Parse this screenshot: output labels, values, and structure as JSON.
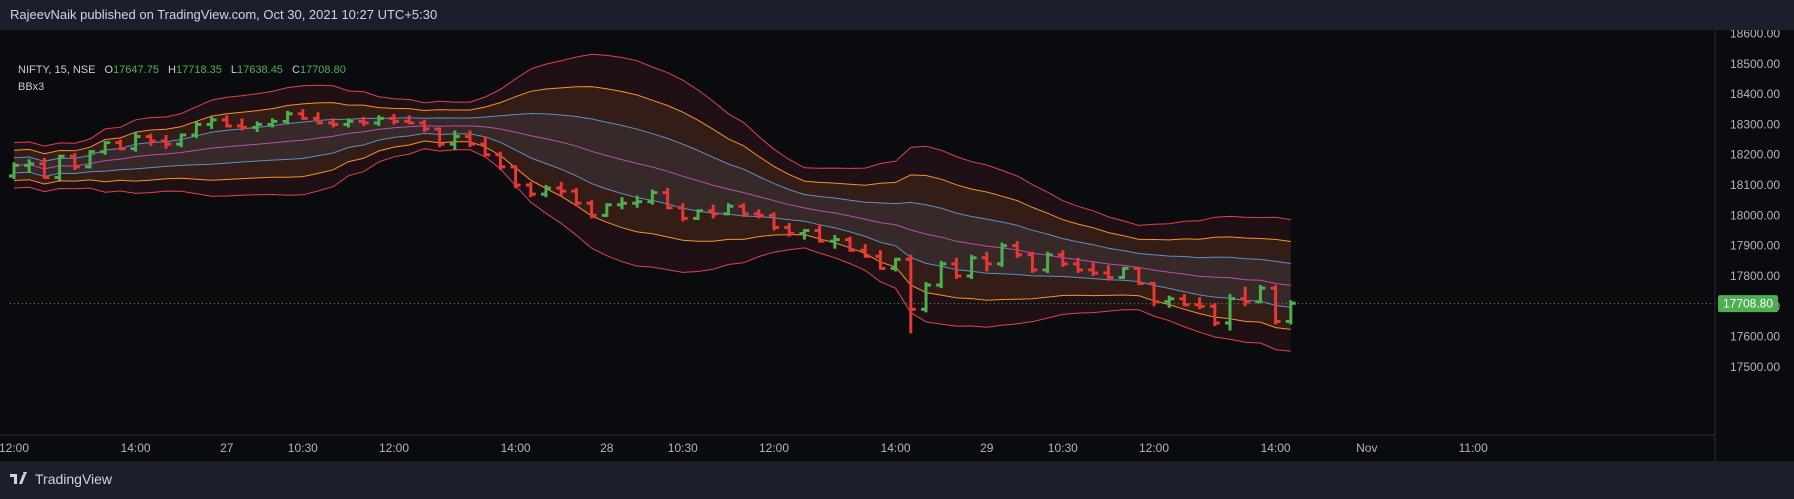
{
  "header": {
    "publisher": "RajeevNaik published on TradingView.com, Oct 30, 2021 10:27 UTC+5:30"
  },
  "legend": {
    "symbol": "NIFTY, 15, NSE",
    "open_label": "O",
    "open": "17647.75",
    "high_label": "H",
    "high": "17718.35",
    "low_label": "L",
    "low": "17638.45",
    "close_label": "C",
    "close": "17708.80",
    "indicator": "BBx3"
  },
  "footer": {
    "brand": "TradingView"
  },
  "colors": {
    "up": "#4caf50",
    "down": "#e53935",
    "bb1": "#5b8fc7",
    "bb2": "#f5922a",
    "bb3": "#e0434a",
    "basis": "#b94fb0",
    "price_tag": "#4caf50"
  },
  "chart_data": {
    "type": "ohlc",
    "ylim": [
      17450,
      18650
    ],
    "yticks": [
      "18600.00",
      "18500.00",
      "18400.00",
      "18300.00",
      "18200.00",
      "18100.00",
      "18000.00",
      "17900.00",
      "17800.00",
      "17700.00",
      "17600.00",
      "17500.00"
    ],
    "xticks": [
      {
        "label": "12:00",
        "t": 0
      },
      {
        "label": "14:00",
        "t": 8
      },
      {
        "label": "27",
        "t": 14
      },
      {
        "label": "10:30",
        "t": 19
      },
      {
        "label": "12:00",
        "t": 25
      },
      {
        "label": "14:00",
        "t": 33
      },
      {
        "label": "28",
        "t": 39
      },
      {
        "label": "10:30",
        "t": 44
      },
      {
        "label": "12:00",
        "t": 50
      },
      {
        "label": "14:00",
        "t": 58
      },
      {
        "label": "29",
        "t": 64
      },
      {
        "label": "10:30",
        "t": 69
      },
      {
        "label": "12:00",
        "t": 75
      },
      {
        "label": "14:00",
        "t": 83
      },
      {
        "label": "Nov",
        "t": 89
      },
      {
        "label": "11:00",
        "t": 96
      }
    ],
    "last_price": "17708.80",
    "last_price_value": 17708.8,
    "bars": [
      [
        18130,
        18175,
        18120,
        18165
      ],
      [
        18165,
        18185,
        18140,
        18170
      ],
      [
        18170,
        18190,
        18120,
        18125
      ],
      [
        18125,
        18200,
        18115,
        18195
      ],
      [
        18195,
        18205,
        18150,
        18160
      ],
      [
        18160,
        18215,
        18155,
        18210
      ],
      [
        18210,
        18245,
        18200,
        18240
      ],
      [
        18240,
        18250,
        18215,
        18220
      ],
      [
        18220,
        18275,
        18210,
        18260
      ],
      [
        18260,
        18270,
        18230,
        18245
      ],
      [
        18245,
        18265,
        18220,
        18235
      ],
      [
        18235,
        18270,
        18225,
        18265
      ],
      [
        18265,
        18310,
        18255,
        18300
      ],
      [
        18300,
        18325,
        18285,
        18315
      ],
      [
        18315,
        18330,
        18290,
        18295
      ],
      [
        18295,
        18320,
        18280,
        18290
      ],
      [
        18290,
        18310,
        18275,
        18300
      ],
      [
        18300,
        18320,
        18290,
        18310
      ],
      [
        18310,
        18345,
        18300,
        18335
      ],
      [
        18335,
        18350,
        18315,
        18320
      ],
      [
        18320,
        18340,
        18300,
        18305
      ],
      [
        18305,
        18320,
        18290,
        18300
      ],
      [
        18300,
        18320,
        18290,
        18310
      ],
      [
        18310,
        18325,
        18295,
        18305
      ],
      [
        18305,
        18330,
        18295,
        18320
      ],
      [
        18320,
        18335,
        18300,
        18310
      ],
      [
        18310,
        18330,
        18300,
        18305
      ],
      [
        18305,
        18315,
        18275,
        18285
      ],
      [
        18285,
        18290,
        18225,
        18235
      ],
      [
        18235,
        18280,
        18215,
        18260
      ],
      [
        18260,
        18280,
        18225,
        18235
      ],
      [
        18235,
        18260,
        18195,
        18200
      ],
      [
        18200,
        18210,
        18150,
        18160
      ],
      [
        18160,
        18165,
        18090,
        18100
      ],
      [
        18100,
        18110,
        18060,
        18070
      ],
      [
        18070,
        18100,
        18060,
        18090
      ],
      [
        18090,
        18110,
        18065,
        18080
      ],
      [
        18080,
        18090,
        18030,
        18040
      ],
      [
        18040,
        18050,
        17990,
        18000
      ],
      [
        18000,
        18040,
        17995,
        18035
      ],
      [
        18035,
        18060,
        18020,
        18040
      ],
      [
        18040,
        18065,
        18025,
        18045
      ],
      [
        18045,
        18085,
        18035,
        18075
      ],
      [
        18075,
        18090,
        18020,
        18025
      ],
      [
        18025,
        18040,
        17980,
        17990
      ],
      [
        17990,
        18020,
        17985,
        18015
      ],
      [
        18015,
        18035,
        17990,
        18005
      ],
      [
        18005,
        18040,
        18000,
        18030
      ],
      [
        18030,
        18040,
        17995,
        18005
      ],
      [
        18005,
        18020,
        17990,
        18000
      ],
      [
        18000,
        18010,
        17950,
        17960
      ],
      [
        17960,
        17975,
        17930,
        17940
      ],
      [
        17940,
        17955,
        17920,
        17950
      ],
      [
        17950,
        17970,
        17910,
        17915
      ],
      [
        17915,
        17935,
        17890,
        17920
      ],
      [
        17920,
        17930,
        17880,
        17885
      ],
      [
        17885,
        17905,
        17860,
        17865
      ],
      [
        17865,
        17885,
        17820,
        17825
      ],
      [
        17825,
        17860,
        17815,
        17855
      ],
      [
        17855,
        17870,
        17610,
        17690
      ],
      [
        17690,
        17780,
        17680,
        17770
      ],
      [
        17770,
        17850,
        17760,
        17840
      ],
      [
        17840,
        17860,
        17790,
        17800
      ],
      [
        17800,
        17870,
        17790,
        17860
      ],
      [
        17860,
        17880,
        17815,
        17840
      ],
      [
        17840,
        17910,
        17830,
        17900
      ],
      [
        17900,
        17915,
        17860,
        17870
      ],
      [
        17870,
        17880,
        17810,
        17820
      ],
      [
        17820,
        17880,
        17810,
        17870
      ],
      [
        17870,
        17885,
        17830,
        17840
      ],
      [
        17840,
        17860,
        17810,
        17820
      ],
      [
        17820,
        17845,
        17800,
        17810
      ],
      [
        17810,
        17835,
        17785,
        17795
      ],
      [
        17795,
        17830,
        17790,
        17825
      ],
      [
        17825,
        17830,
        17770,
        17775
      ],
      [
        17775,
        17780,
        17700,
        17715
      ],
      [
        17715,
        17735,
        17695,
        17725
      ],
      [
        17725,
        17740,
        17700,
        17705
      ],
      [
        17705,
        17730,
        17690,
        17700
      ],
      [
        17700,
        17710,
        17635,
        17645
      ],
      [
        17645,
        17740,
        17620,
        17725
      ],
      [
        17725,
        17765,
        17700,
        17715
      ],
      [
        17715,
        17770,
        17710,
        17760
      ],
      [
        17760,
        17770,
        17640,
        17650
      ],
      [
        17650,
        17720,
        17640,
        17710
      ]
    ]
  }
}
